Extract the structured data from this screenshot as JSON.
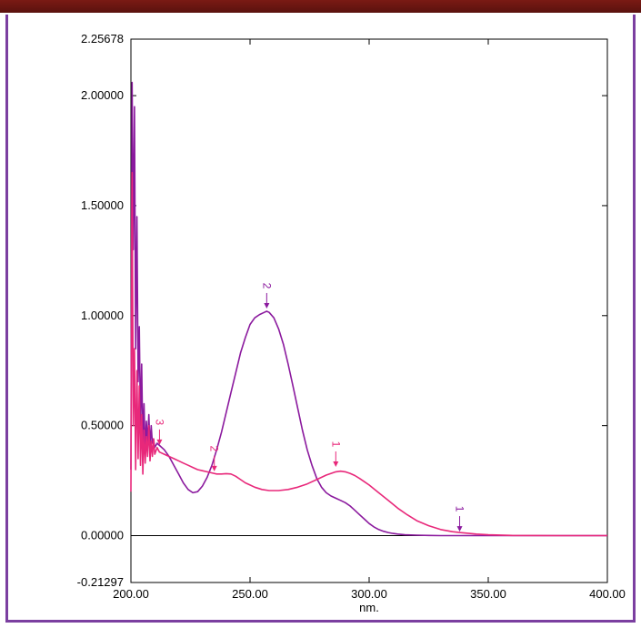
{
  "chart_data": {
    "type": "line",
    "title": "",
    "xlabel": "nm.",
    "ylabel": "",
    "xlim": [
      200,
      400
    ],
    "ylim": [
      -0.21297,
      2.25678
    ],
    "x_ticks": [
      {
        "value": 200,
        "label": "200.00"
      },
      {
        "value": 250,
        "label": "250.00"
      },
      {
        "value": 300,
        "label": "300.00"
      },
      {
        "value": 350,
        "label": "350.00"
      },
      {
        "value": 400,
        "label": "400.00"
      }
    ],
    "y_ticks": [
      {
        "value": 2.25678,
        "label": "2.25678"
      },
      {
        "value": 2.0,
        "label": "2.00000"
      },
      {
        "value": 1.5,
        "label": "1.50000"
      },
      {
        "value": 1.0,
        "label": "1.00000"
      },
      {
        "value": 0.5,
        "label": "0.50000"
      },
      {
        "value": 0.0,
        "label": "0.00000"
      },
      {
        "value": -0.21297,
        "label": "-0.21297"
      }
    ],
    "grid": false,
    "legend": "none",
    "series": [
      {
        "color": "#8b1a9e",
        "x": [
          200,
          200.5,
          201,
          201.5,
          202,
          202.5,
          203,
          203.5,
          204,
          204.5,
          205,
          205.5,
          206,
          206.5,
          207,
          207.5,
          208,
          208.5,
          209,
          209.5,
          210,
          211,
          212,
          214,
          216,
          218,
          220,
          222,
          224,
          226,
          228,
          230,
          232,
          234,
          236,
          238,
          240,
          242,
          244,
          246,
          248,
          250,
          252,
          254,
          256,
          257,
          258,
          260,
          262,
          264,
          266,
          268,
          270,
          272,
          274,
          276,
          278,
          280,
          282,
          284,
          286,
          288,
          290,
          292,
          294,
          296,
          298,
          300,
          302,
          304,
          306,
          308,
          310,
          312,
          315,
          320,
          325,
          330,
          340,
          350,
          360,
          380,
          400
        ],
        "y": [
          0.3,
          2.06,
          1.3,
          1.95,
          0.85,
          1.45,
          0.7,
          0.95,
          0.5,
          0.78,
          0.42,
          0.6,
          0.38,
          0.52,
          0.42,
          0.55,
          0.4,
          0.5,
          0.42,
          0.44,
          0.4,
          0.42,
          0.41,
          0.39,
          0.36,
          0.32,
          0.28,
          0.24,
          0.21,
          0.195,
          0.2,
          0.225,
          0.265,
          0.32,
          0.39,
          0.47,
          0.56,
          0.65,
          0.74,
          0.83,
          0.9,
          0.96,
          0.99,
          1.005,
          1.015,
          1.02,
          1.015,
          0.99,
          0.94,
          0.87,
          0.78,
          0.68,
          0.58,
          0.48,
          0.39,
          0.32,
          0.26,
          0.22,
          0.195,
          0.18,
          0.17,
          0.16,
          0.15,
          0.135,
          0.115,
          0.095,
          0.075,
          0.055,
          0.04,
          0.028,
          0.02,
          0.014,
          0.01,
          0.007,
          0.004,
          0.002,
          0.001,
          0.0,
          0.0,
          0.0,
          0.0,
          0.0,
          0.0
        ]
      },
      {
        "color": "#e8287a",
        "x": [
          200,
          200.5,
          201,
          201.5,
          202,
          202.5,
          203,
          203.5,
          204,
          204.5,
          205,
          205.5,
          206,
          206.5,
          207,
          207.5,
          208,
          208.5,
          209,
          209.5,
          210,
          211,
          212,
          214,
          216,
          218,
          220,
          222,
          224,
          226,
          228,
          230,
          232,
          234,
          236,
          238,
          240,
          242,
          244,
          246,
          248,
          250,
          252,
          255,
          258,
          262,
          266,
          270,
          274,
          278,
          282,
          286,
          288,
          290,
          292,
          294,
          296,
          298,
          300,
          304,
          308,
          312,
          316,
          320,
          325,
          330,
          335,
          340,
          345,
          350,
          360,
          380,
          400
        ],
        "y": [
          0.2,
          1.65,
          0.5,
          0.85,
          0.3,
          0.75,
          0.35,
          0.68,
          0.32,
          0.55,
          0.28,
          0.48,
          0.33,
          0.45,
          0.36,
          0.5,
          0.34,
          0.43,
          0.36,
          0.44,
          0.37,
          0.4,
          0.38,
          0.37,
          0.36,
          0.35,
          0.34,
          0.33,
          0.32,
          0.31,
          0.3,
          0.295,
          0.29,
          0.285,
          0.28,
          0.28,
          0.282,
          0.28,
          0.27,
          0.255,
          0.24,
          0.23,
          0.22,
          0.21,
          0.205,
          0.205,
          0.21,
          0.22,
          0.235,
          0.255,
          0.275,
          0.29,
          0.293,
          0.29,
          0.283,
          0.273,
          0.26,
          0.245,
          0.23,
          0.195,
          0.16,
          0.125,
          0.095,
          0.068,
          0.045,
          0.028,
          0.018,
          0.012,
          0.007,
          0.004,
          0.001,
          0.0,
          0.0
        ]
      }
    ],
    "annotations": [
      {
        "text": "1",
        "x": 286,
        "y": 0.3,
        "color": "#e8287a"
      },
      {
        "text": "2",
        "x": 235,
        "y": 0.28,
        "color": "#e8287a"
      },
      {
        "text": "3",
        "x": 212,
        "y": 0.4,
        "color": "#e8287a"
      },
      {
        "text": "2",
        "x": 257,
        "y": 1.02,
        "color": "#8b1a9e"
      },
      {
        "text": "1",
        "x": 338,
        "y": 0.006,
        "color": "#8b1a9e"
      }
    ]
  }
}
